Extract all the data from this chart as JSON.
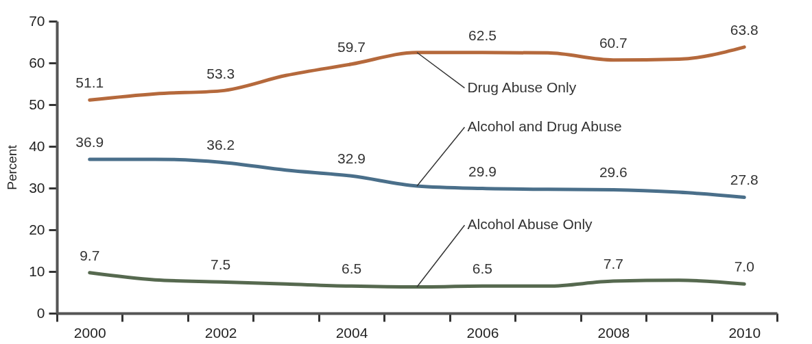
{
  "chart_data": {
    "type": "line",
    "ylabel": "Percent",
    "categories": [
      "2000",
      null,
      "2002",
      null,
      "2004",
      null,
      "2006",
      null,
      "2008",
      null,
      "2010"
    ],
    "ylim": [
      0,
      70
    ],
    "yticks": [
      0,
      10,
      20,
      30,
      40,
      50,
      60,
      70
    ],
    "grid": false,
    "legend": false,
    "marker": "none",
    "line_style": "solid",
    "series": [
      {
        "name": "Drug Abuse Only",
        "color": "#b5693c",
        "values": [
          51.1,
          52.6,
          53.3,
          57.0,
          59.7,
          62.5,
          62.5,
          62.4,
          60.7,
          60.9,
          63.8
        ],
        "value_labels": [
          "51.1",
          null,
          "53.3",
          null,
          "59.7",
          null,
          "62.5",
          null,
          "60.7",
          null,
          "63.8"
        ]
      },
      {
        "name": "Alcohol and Drug Abuse",
        "color": "#4a6f8a",
        "values": [
          36.9,
          36.9,
          36.2,
          34.3,
          32.9,
          30.5,
          29.9,
          29.7,
          29.6,
          29.0,
          27.8
        ],
        "value_labels": [
          "36.9",
          null,
          "36.2",
          null,
          "32.9",
          null,
          "29.9",
          null,
          "29.6",
          null,
          "27.8"
        ]
      },
      {
        "name": "Alcohol Abuse Only",
        "color": "#56694f",
        "values": [
          9.7,
          8.0,
          7.5,
          7.0,
          6.5,
          6.3,
          6.5,
          6.5,
          7.7,
          7.9,
          7.0
        ],
        "value_labels": [
          "9.7",
          null,
          "7.5",
          null,
          "6.5",
          null,
          "6.5",
          null,
          "7.7",
          null,
          "7.0"
        ]
      }
    ]
  }
}
